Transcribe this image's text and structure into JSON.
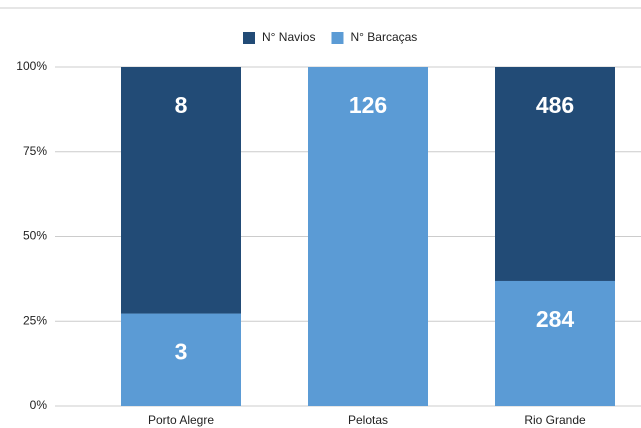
{
  "chart_data": {
    "type": "bar",
    "stack": "percent",
    "categories": [
      "Porto Alegre",
      "Pelotas",
      "Rio Grande"
    ],
    "series": [
      {
        "name": "N° Barcaças",
        "color": "#5b9bd5",
        "values": [
          3,
          126,
          284
        ]
      },
      {
        "name": "N° Navios",
        "color": "#224b76",
        "values": [
          8,
          0,
          486
        ]
      }
    ],
    "ylim": [
      0,
      100
    ],
    "yticks": [
      {
        "value": 0,
        "label": "0%"
      },
      {
        "value": 25,
        "label": "25%"
      },
      {
        "value": 50,
        "label": "50%"
      },
      {
        "value": 75,
        "label": "75%"
      },
      {
        "value": 100,
        "label": "100%"
      }
    ],
    "grid": true,
    "legend": "top"
  }
}
